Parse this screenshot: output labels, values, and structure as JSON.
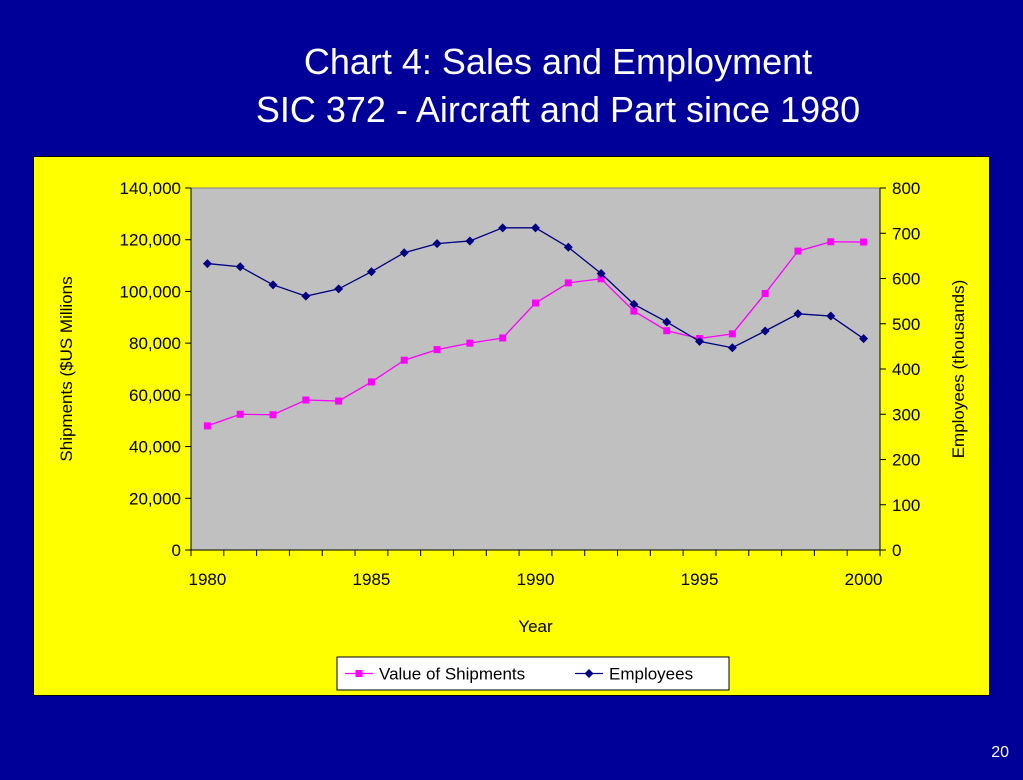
{
  "slide": {
    "title_line1": "Chart 4:  Sales and Employment",
    "title_line2": "SIC 372 - Aircraft and Part since 1980",
    "page_number": "20"
  },
  "chart_data": {
    "type": "line",
    "title": "",
    "xlabel": "Year",
    "ylabel_left": "Shipments ($US Millions",
    "ylabel_right": "Employees (thousands)",
    "x": [
      1980,
      1981,
      1982,
      1983,
      1984,
      1985,
      1986,
      1987,
      1988,
      1989,
      1990,
      1991,
      1992,
      1993,
      1994,
      1995,
      1996,
      1997,
      1998,
      1999,
      2000
    ],
    "x_ticks": [
      "1980",
      "1985",
      "1990",
      "1995",
      "2000"
    ],
    "ylim_left": [
      0,
      140000
    ],
    "ylim_right": [
      0,
      800
    ],
    "y_ticks_left": [
      "0",
      "20,000",
      "40,000",
      "60,000",
      "80,000",
      "100,000",
      "120,000",
      "140,000"
    ],
    "y_ticks_right": [
      "0",
      "100",
      "200",
      "300",
      "400",
      "500",
      "600",
      "700",
      "800"
    ],
    "grid": false,
    "legend_position": "bottom",
    "plot_background": "#c0c0c0",
    "series": [
      {
        "name": "Value of Shipments",
        "axis": "left",
        "color": "#ff00ff",
        "marker": "square",
        "values": [
          48000,
          52500,
          52300,
          58000,
          57600,
          65000,
          73400,
          77500,
          80000,
          82000,
          95500,
          103300,
          104900,
          92400,
          84800,
          81800,
          83600,
          99200,
          115600,
          119200,
          119100
        ]
      },
      {
        "name": "Employees",
        "axis": "right",
        "color": "#000080",
        "marker": "diamond",
        "values": [
          633,
          626,
          586,
          561,
          577,
          615,
          657,
          677,
          683,
          712,
          712,
          669,
          611,
          543,
          504,
          461,
          447,
          484,
          522,
          517,
          467
        ]
      }
    ]
  }
}
